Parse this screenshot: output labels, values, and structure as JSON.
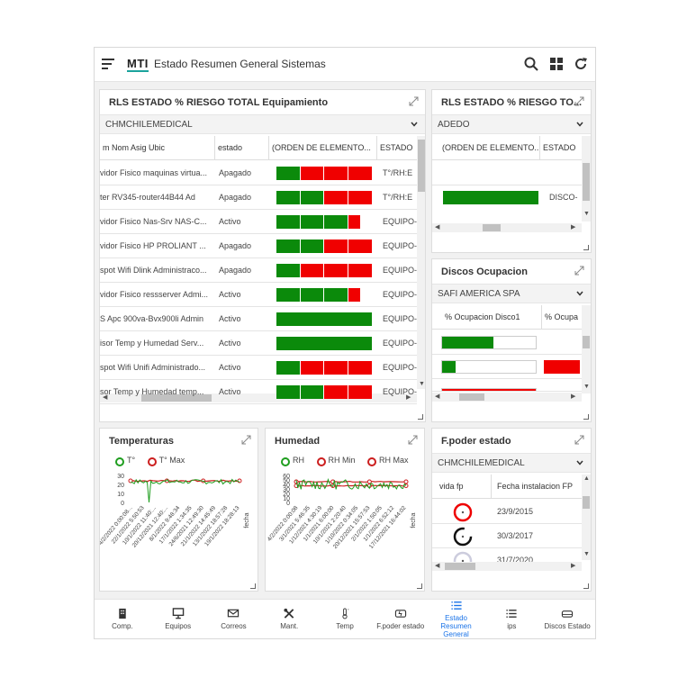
{
  "header": {
    "logo": "MTI",
    "title": "Estado Resumen General Sistemas",
    "icons": [
      "menu-icon",
      "search-icon",
      "grid-icon",
      "refresh-icon"
    ]
  },
  "risk_main": {
    "title": "RLS ESTADO % RIESGO TOTAL Equipamiento",
    "filter": "CHMCHILEMEDICAL",
    "columns": [
      "m Nom Asig Ubic",
      "estado",
      "(ORDEN DE ELEMENTO...",
      "ESTADO"
    ],
    "rows": [
      {
        "name": "vidor Fisico maquinas virtua...",
        "estado": "Apagado",
        "estado2": "T°/RH:E",
        "bar": [
          [
            "g",
            2
          ],
          [
            "r",
            2
          ],
          [
            "r",
            2
          ],
          [
            "r",
            2
          ]
        ]
      },
      {
        "name": "ter RV345-router44B44 Ad",
        "estado": "Apagado",
        "estado2": "T°/RH:E",
        "bar": [
          [
            "g",
            2
          ],
          [
            "g",
            2
          ],
          [
            "r",
            2
          ],
          [
            "r",
            2
          ]
        ]
      },
      {
        "name": "vidor Fisico Nas-Srv NAS-C...",
        "estado": "Activo",
        "estado2": "EQUIPO-",
        "bar": [
          [
            "g",
            2
          ],
          [
            "g",
            2
          ],
          [
            "g",
            2
          ],
          [
            "r",
            1
          ]
        ]
      },
      {
        "name": "vidor Fisico HP PROLIANT ...",
        "estado": "Apagado",
        "estado2": "EQUIPO-",
        "bar": [
          [
            "g",
            2
          ],
          [
            "g",
            2
          ],
          [
            "r",
            2
          ],
          [
            "r",
            2
          ]
        ]
      },
      {
        "name": "spot Wifi Dlink Administraco...",
        "estado": "Apagado",
        "estado2": "EQUIPO-",
        "bar": [
          [
            "g",
            2
          ],
          [
            "r",
            2
          ],
          [
            "r",
            2
          ],
          [
            "r",
            2
          ]
        ]
      },
      {
        "name": "vidor Fisico ressserver Admi...",
        "estado": "Activo",
        "estado2": "EQUIPO-",
        "bar": [
          [
            "g",
            2
          ],
          [
            "g",
            2
          ],
          [
            "g",
            2
          ],
          [
            "r",
            1
          ]
        ]
      },
      {
        "name": "S Apc 900va-Bvx900li Admin",
        "estado": "Activo",
        "estado2": "EQUIPO-",
        "bar": [
          [
            "g",
            8
          ]
        ]
      },
      {
        "name": "isor Temp y Humedad Serv...",
        "estado": "Activo",
        "estado2": "EQUIPO-",
        "bar": [
          [
            "g",
            8
          ]
        ]
      },
      {
        "name": "spot Wifi Unifi Administrado...",
        "estado": "Activo",
        "estado2": "EQUIPO-",
        "bar": [
          [
            "g",
            2
          ],
          [
            "r",
            2
          ],
          [
            "r",
            2
          ],
          [
            "r",
            2
          ]
        ]
      },
      {
        "name": "sor Temp y Humedad temp...",
        "estado": "Activo",
        "estado2": "EQUIPO-",
        "bar": [
          [
            "g",
            2
          ],
          [
            "g",
            2
          ],
          [
            "r",
            2
          ],
          [
            "r",
            2
          ]
        ]
      }
    ]
  },
  "risk_side": {
    "title": "RLS ESTADO % RIESGO TO...",
    "filter": "ADEDO",
    "columns": [
      "(ORDEN DE ELEMENTO...",
      "ESTADO"
    ],
    "rows": [
      {
        "estado": "",
        "bar": []
      },
      {
        "estado": "DISCO-",
        "bar": [
          [
            "g",
            1
          ]
        ]
      }
    ]
  },
  "disks": {
    "title": "Discos Ocupacion",
    "filter": "SAFI AMERICA SPA",
    "columns": [
      "% Ocupacion Disco1",
      "% Ocupa"
    ],
    "rows": [
      {
        "fill1": 0.55,
        "fill2": null
      },
      {
        "fill1": 0.14,
        "fill2": 1.0
      },
      {
        "fill1": 1.0,
        "fill2": null
      }
    ]
  },
  "temperaturas": {
    "title": "Temperaturas",
    "legend": [
      "T°",
      "T° Max"
    ],
    "yticks": [
      "30",
      "20",
      "10",
      "0"
    ],
    "xticks": [
      "4/2/2022 0:00:08...",
      "22/1/2022 5:50:53",
      "10/1/2022 11:40:...",
      "20/12/2021 12:40:...",
      "8/1/2022 9:48:34",
      "17/1/2022 1:34:35",
      "24/6/2021 12:49:30",
      "21/1/2022 14:45:49",
      "13/1/2022 18:57:28",
      "19/1/2022 18:28:13"
    ],
    "xlabel": "fecha",
    "colors": {
      "t": "#1f9e1f",
      "tmax": "#cc1e1e"
    }
  },
  "humedad": {
    "title": "Humedad",
    "legend": [
      "RH",
      "RH Min",
      "RH Max"
    ],
    "yticks": [
      "60",
      "50",
      "40",
      "30",
      "20",
      "10",
      "0"
    ],
    "xticks": [
      "4/2/2022 0:00:08",
      "3/1/2021 5:46:35",
      "1/12/2021 4:30:19",
      "1/1/2021 6:00:00",
      "10/1/2021 2:20:40",
      "1/10/2022 0:34:05",
      "20/12/2021 15:57:53",
      "2/1/2022 1:50:05",
      "1/1/2022 6:52:12",
      "17/12/2021 16:44:02"
    ],
    "xlabel": "fecha",
    "colors": {
      "rh": "#1f9e1f",
      "min": "#cc1e1e",
      "max": "#cc1e1e"
    }
  },
  "fpoder": {
    "title": "F.poder estado",
    "filter": "CHMCHILEMEDICAL",
    "columns": [
      "vida fp",
      "Fecha instalacion FP"
    ],
    "rows": [
      {
        "date": "23/9/2015",
        "gauge": "red"
      },
      {
        "date": "30/3/2017",
        "gauge": "black"
      },
      {
        "date": "31/7/2020",
        "gauge": "light"
      }
    ]
  },
  "bottomnav": [
    {
      "label": "Comp.",
      "icon": "building-icon"
    },
    {
      "label": "Equipos",
      "icon": "monitor-icon"
    },
    {
      "label": "Correos",
      "icon": "mail-icon"
    },
    {
      "label": "Mant.",
      "icon": "tools-icon"
    },
    {
      "label": "Temp",
      "icon": "thermometer-icon"
    },
    {
      "label": "F.poder estado",
      "icon": "power-supply-icon"
    },
    {
      "label": "Estado Resumen General",
      "icon": "list-icon",
      "active": true
    },
    {
      "label": "ips",
      "icon": "list-icon"
    },
    {
      "label": "Discos Estado",
      "icon": "disk-icon"
    }
  ]
}
